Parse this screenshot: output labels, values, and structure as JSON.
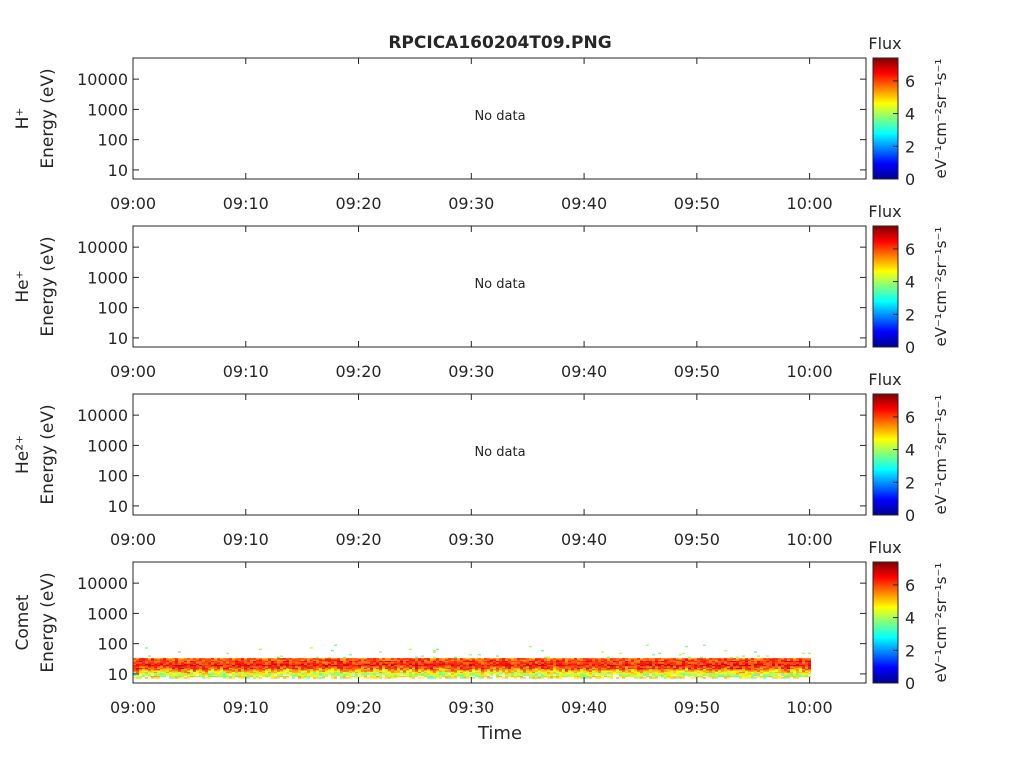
{
  "title": "RPCICA160204T09.PNG",
  "no_data_label": "No data",
  "colorbar": {
    "label": "Flux",
    "units_label": "eV⁻¹cm⁻²sr⁻¹s⁻¹",
    "ticks": [
      "0",
      "2",
      "4",
      "6"
    ],
    "range": [
      0,
      7.4
    ],
    "colormap": "jet"
  },
  "chart_data": [
    {
      "type": "heatmap",
      "ylabel": "Energy (eV)",
      "species": "H⁺",
      "has_data": false,
      "xlabel": "",
      "xticks": [
        "09:00",
        "09:10",
        "09:20",
        "09:30",
        "09:40",
        "09:50",
        "10:00"
      ],
      "yticks": [
        "10",
        "100",
        "1000",
        "10000"
      ],
      "ylim": [
        5,
        50000
      ],
      "yscale": "log"
    },
    {
      "type": "heatmap",
      "ylabel": "Energy (eV)",
      "species": "He⁺",
      "has_data": false,
      "xlabel": "",
      "xticks": [
        "09:00",
        "09:10",
        "09:20",
        "09:30",
        "09:40",
        "09:50",
        "10:00"
      ],
      "yticks": [
        "10",
        "100",
        "1000",
        "10000"
      ],
      "ylim": [
        5,
        50000
      ],
      "yscale": "log"
    },
    {
      "type": "heatmap",
      "ylabel": "Energy (eV)",
      "species": "He²⁺",
      "has_data": false,
      "xlabel": "",
      "xticks": [
        "09:00",
        "09:10",
        "09:20",
        "09:30",
        "09:40",
        "09:50",
        "10:00"
      ],
      "yticks": [
        "10",
        "100",
        "1000",
        "10000"
      ],
      "ylim": [
        5,
        50000
      ],
      "yscale": "log"
    },
    {
      "type": "heatmap",
      "ylabel": "Energy (eV)",
      "species": "Comet",
      "has_data": true,
      "xlabel": "Time",
      "xticks": [
        "09:00",
        "09:10",
        "09:20",
        "09:30",
        "09:40",
        "09:50",
        "10:00"
      ],
      "yticks": [
        "10",
        "100",
        "1000",
        "10000"
      ],
      "ylim": [
        5,
        50000
      ],
      "yscale": "log",
      "time_range": [
        "09:00",
        "10:00"
      ],
      "energy_band": {
        "peak_energy_eV": 16,
        "core_range_eV": [
          10,
          25
        ],
        "sparse_range_eV": [
          7,
          80
        ],
        "peak_flux": 7.0
      }
    }
  ]
}
